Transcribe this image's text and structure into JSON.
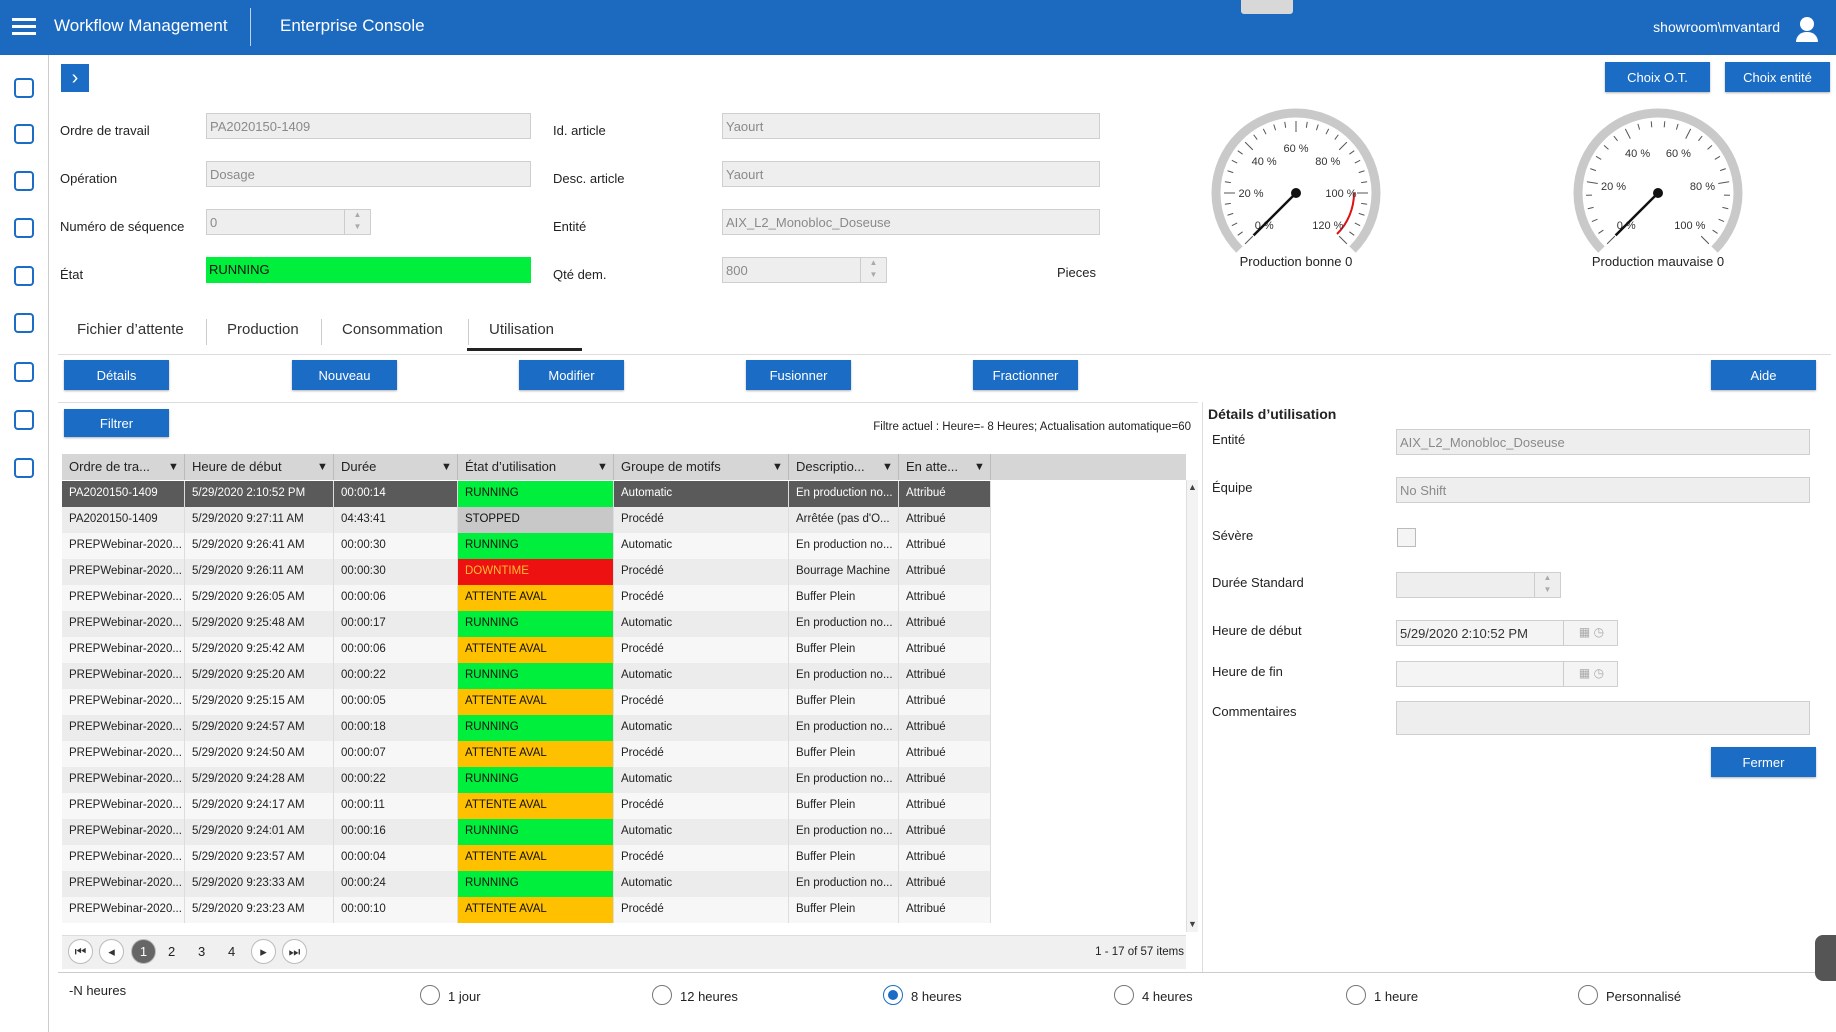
{
  "header": {
    "app": "Workflow Management",
    "console": "Enterprise Console",
    "user": "showroom\\mvantard"
  },
  "top_buttons": [
    "Choix O.T.",
    "Choix entité"
  ],
  "form": {
    "left": [
      {
        "label": "Ordre de travail",
        "value": "PA2020150-1409"
      },
      {
        "label": "Opération",
        "value": "Dosage"
      },
      {
        "label": "Numéro de séquence",
        "value": 0,
        "input": "spin"
      },
      {
        "label": "État",
        "value": "RUNNING",
        "input": "state"
      }
    ],
    "right": [
      {
        "label": "Id. article",
        "value": "Yaourt"
      },
      {
        "label": "Desc. article",
        "value": "Yaourt"
      },
      {
        "label": "Entité",
        "value": "AIX_L2_Monobloc_Doseuse"
      },
      {
        "label": "Qté dem.",
        "value": 800,
        "input": "spin"
      }
    ],
    "unit": "Pieces"
  },
  "gauges": [
    {
      "title": "Production bonne 0",
      "ticks": [
        "0 %",
        "20 %",
        "40 %",
        "60 %",
        "80 %",
        "100 %",
        "120 %"
      ],
      "red_from": 5
    },
    {
      "title": "Production mauvaise 0",
      "ticks": [
        "0 %",
        "20 %",
        "40 %",
        "60 %",
        "80 %",
        "100 %"
      ]
    }
  ],
  "tabs": [
    "Fichier d’attente",
    "Production",
    "Consommation",
    "Utilisation"
  ],
  "active_tab": 3,
  "actions": [
    "Détails",
    "Nouveau",
    "Modifier",
    "Fusionner",
    "Fractionner",
    "Aide"
  ],
  "filter_button": "Filtrer",
  "filter_status": "Filtre actuel : Heure=- 8 Heures; Actualisation automatique=60",
  "state_colors": {
    "RUNNING": "#00ee3c",
    "STOPPED": "#c8c8c8",
    "DOWNTIME": "#ee1111",
    "ATTENTE AVAL": "#ffc000"
  },
  "table": {
    "columns": [
      "Ordre de tra...",
      "Heure de début",
      "Durée",
      "État d’utilisation",
      "Groupe de motifs",
      "Descriptio...",
      "En atte..."
    ],
    "selected_row": 0,
    "rows": [
      [
        "PA2020150-1409",
        "5/29/2020 2:10:52 PM",
        "00:00:14",
        "RUNNING",
        "Automatic",
        "En production no...",
        "Attribué"
      ],
      [
        "PA2020150-1409",
        "5/29/2020 9:27:11 AM",
        "04:43:41",
        "STOPPED",
        "Procédé",
        "Arrêtée (pas d'O...",
        "Attribué"
      ],
      [
        "PREPWebinar-2020...",
        "5/29/2020 9:26:41 AM",
        "00:00:30",
        "RUNNING",
        "Automatic",
        "En production no...",
        "Attribué"
      ],
      [
        "PREPWebinar-2020...",
        "5/29/2020 9:26:11 AM",
        "00:00:30",
        "DOWNTIME",
        "Procédé",
        "Bourrage Machine",
        "Attribué"
      ],
      [
        "PREPWebinar-2020...",
        "5/29/2020 9:26:05 AM",
        "00:00:06",
        "ATTENTE AVAL",
        "Procédé",
        "Buffer Plein",
        "Attribué"
      ],
      [
        "PREPWebinar-2020...",
        "5/29/2020 9:25:48 AM",
        "00:00:17",
        "RUNNING",
        "Automatic",
        "En production no...",
        "Attribué"
      ],
      [
        "PREPWebinar-2020...",
        "5/29/2020 9:25:42 AM",
        "00:00:06",
        "ATTENTE AVAL",
        "Procédé",
        "Buffer Plein",
        "Attribué"
      ],
      [
        "PREPWebinar-2020...",
        "5/29/2020 9:25:20 AM",
        "00:00:22",
        "RUNNING",
        "Automatic",
        "En production no...",
        "Attribué"
      ],
      [
        "PREPWebinar-2020...",
        "5/29/2020 9:25:15 AM",
        "00:00:05",
        "ATTENTE AVAL",
        "Procédé",
        "Buffer Plein",
        "Attribué"
      ],
      [
        "PREPWebinar-2020...",
        "5/29/2020 9:24:57 AM",
        "00:00:18",
        "RUNNING",
        "Automatic",
        "En production no...",
        "Attribué"
      ],
      [
        "PREPWebinar-2020...",
        "5/29/2020 9:24:50 AM",
        "00:00:07",
        "ATTENTE AVAL",
        "Procédé",
        "Buffer Plein",
        "Attribué"
      ],
      [
        "PREPWebinar-2020...",
        "5/29/2020 9:24:28 AM",
        "00:00:22",
        "RUNNING",
        "Automatic",
        "En production no...",
        "Attribué"
      ],
      [
        "PREPWebinar-2020...",
        "5/29/2020 9:24:17 AM",
        "00:00:11",
        "ATTENTE AVAL",
        "Procédé",
        "Buffer Plein",
        "Attribué"
      ],
      [
        "PREPWebinar-2020...",
        "5/29/2020 9:24:01 AM",
        "00:00:16",
        "RUNNING",
        "Automatic",
        "En production no...",
        "Attribué"
      ],
      [
        "PREPWebinar-2020...",
        "5/29/2020 9:23:57 AM",
        "00:00:04",
        "ATTENTE AVAL",
        "Procédé",
        "Buffer Plein",
        "Attribué"
      ],
      [
        "PREPWebinar-2020...",
        "5/29/2020 9:23:33 AM",
        "00:00:24",
        "RUNNING",
        "Automatic",
        "En production no...",
        "Attribué"
      ],
      [
        "PREPWebinar-2020...",
        "5/29/2020 9:23:23 AM",
        "00:00:10",
        "ATTENTE AVAL",
        "Procédé",
        "Buffer Plein",
        "Attribué"
      ]
    ]
  },
  "pager": {
    "pages": [
      1,
      2,
      3,
      4
    ],
    "current": 0,
    "summary": "1 - 17 of 57 items"
  },
  "details": {
    "title": "Détails d’utilisation",
    "fields": [
      {
        "label": "Entité",
        "value": "AIX_L2_Monobloc_Doseuse",
        "input": "text"
      },
      {
        "label": "Équipe",
        "value": "No Shift",
        "input": "text"
      },
      {
        "label": "Sévère",
        "input": "checkbox"
      },
      {
        "label": "Durée Standard",
        "input": "spin"
      },
      {
        "label": "Heure de début",
        "value": "5/29/2020 2:10:52 PM",
        "input": "datetime"
      },
      {
        "label": "Heure de fin",
        "input": "datetime"
      },
      {
        "label": "Commentaires",
        "input": "textarea"
      }
    ],
    "close": "Fermer"
  },
  "range": {
    "label": "-N heures",
    "options": [
      "1 jour",
      "12 heures",
      "8 heures",
      "4 heures",
      "1 heure",
      "Personnalisé"
    ],
    "selected": 2
  }
}
